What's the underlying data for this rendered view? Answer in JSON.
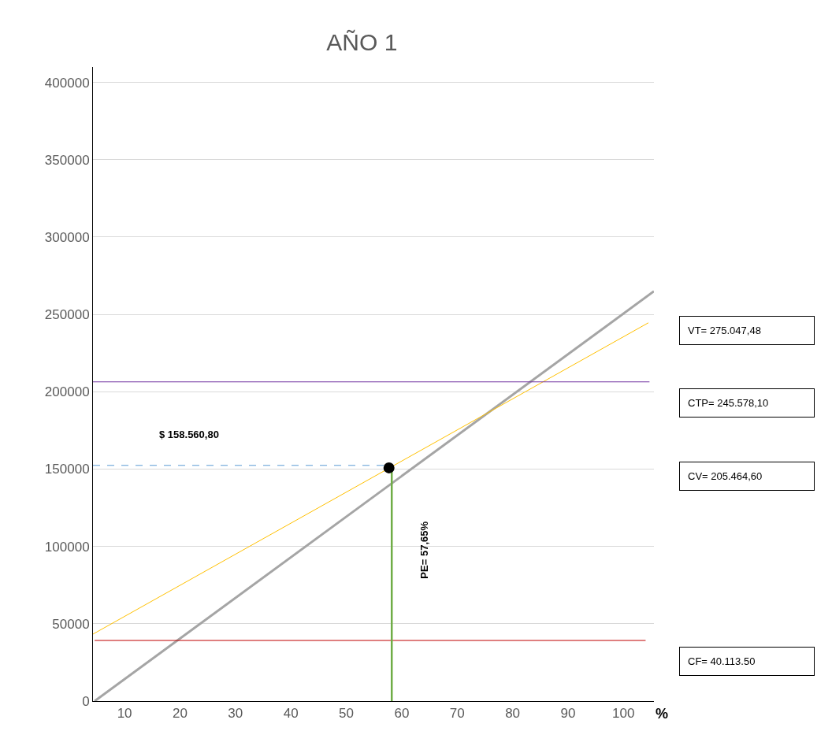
{
  "chart_data": {
    "type": "line",
    "title": "AÑO 1",
    "xlabel": "%",
    "series": [
      {
        "color": "#a5a5a5",
        "x": [
          4.6,
          105.5
        ],
        "values": [
          0,
          265000
        ]
      },
      {
        "color": "#ffc000",
        "x": [
          4.3,
          104.5
        ],
        "values": [
          43300,
          244600
        ]
      },
      {
        "color": "#7030a0",
        "x": [
          4.3,
          104.7
        ],
        "values": [
          206400,
          206400
        ]
      },
      {
        "color": "#c00000",
        "x": [
          4.6,
          104
        ],
        "values": [
          39200,
          39200
        ]
      },
      {
        "color": "#70ad47",
        "x": [
          58.2,
          58.2
        ],
        "values": [
          0,
          150800
        ]
      },
      {
        "color": "#5b9bd5",
        "line_style": "dashed",
        "x": [
          4.3,
          58.2
        ],
        "values": [
          152400,
          152400
        ]
      },
      {
        "type": "scatter",
        "color": "#000000",
        "marker": "circle",
        "x": [
          57.7
        ],
        "values": [
          150800
        ]
      }
    ],
    "annotations": [
      "$ 158.560,80",
      "PE= 57,65%",
      "VT= 275.047,48",
      "CTP= 245.578,10",
      "CV= 205.464,60",
      "CF= 40.113.50"
    ],
    "xlim": [
      4.3,
      105.5
    ],
    "xticks": [
      10,
      20,
      30,
      40,
      50,
      60,
      70,
      80,
      90,
      100
    ],
    "ylim": [
      0,
      410000
    ],
    "yticks": [
      0,
      50000,
      100000,
      150000,
      200000,
      250000,
      300000,
      350000,
      400000
    ],
    "grid": "y"
  }
}
